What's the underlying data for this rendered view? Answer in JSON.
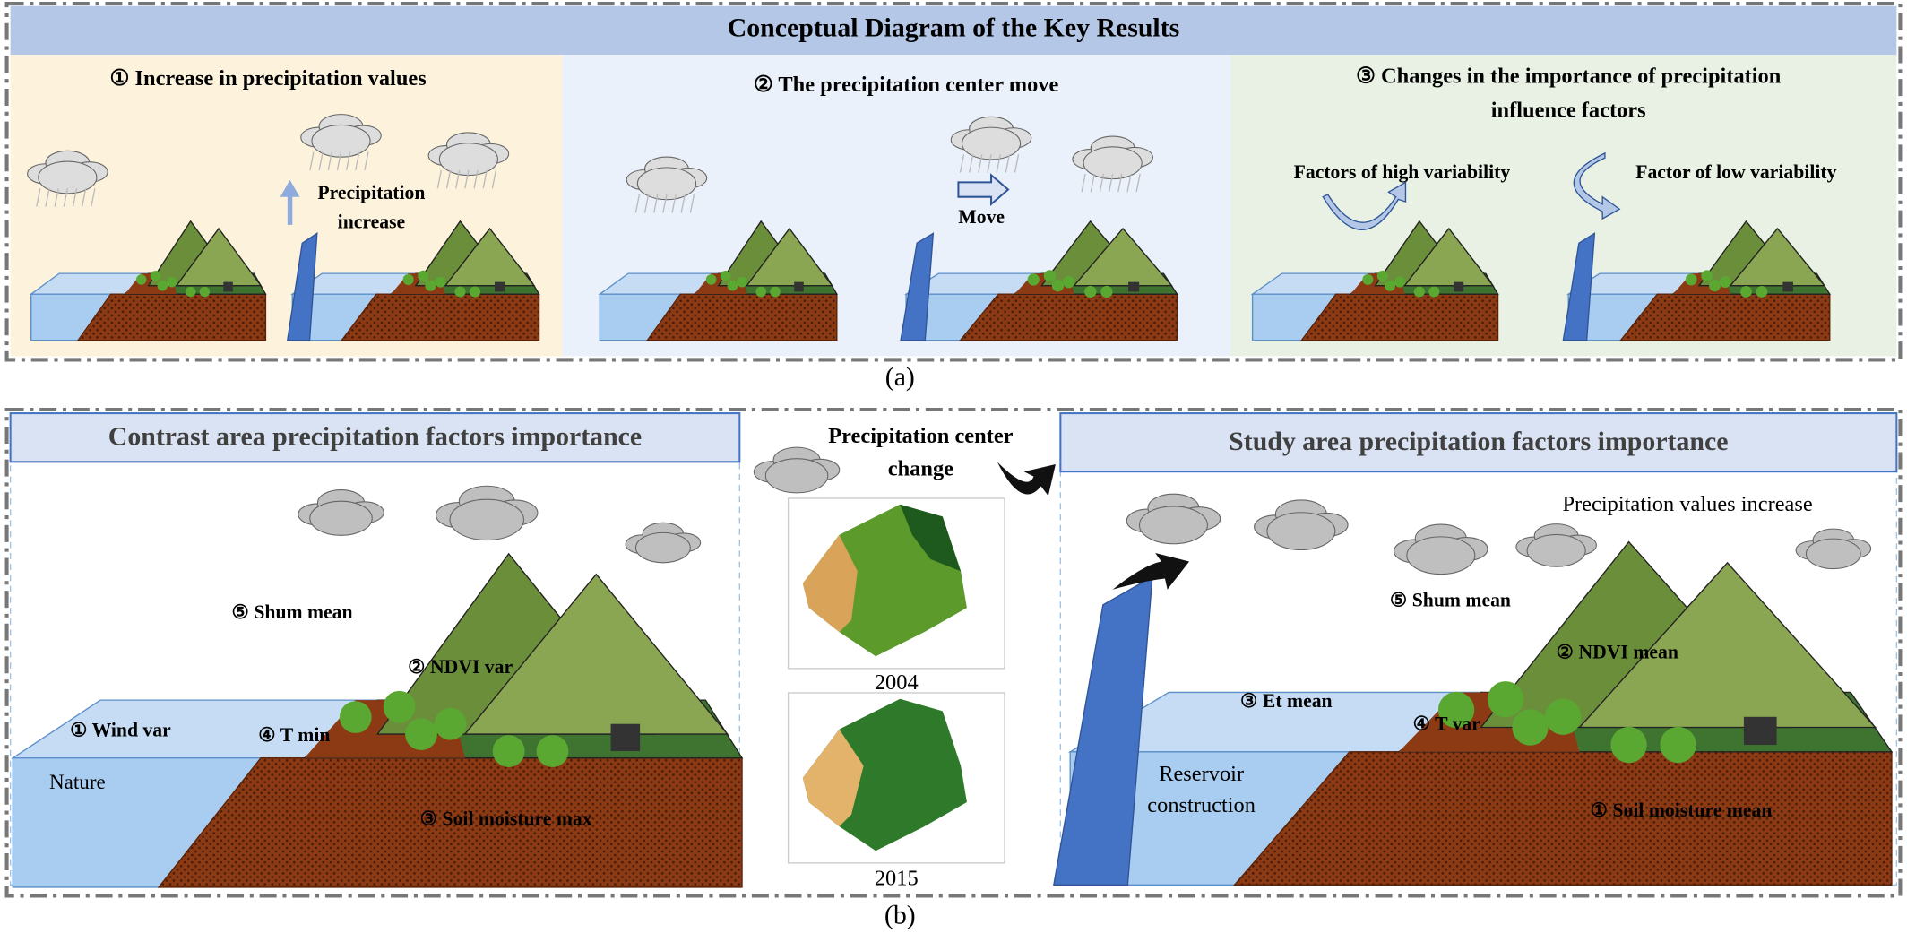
{
  "title": "Conceptual Diagram of the Key Results",
  "panel_a": {
    "sections": [
      {
        "title_lines": [
          "① Increase in precipitation values"
        ],
        "labels": [
          "Precipitation",
          "increase"
        ]
      },
      {
        "title_lines": [
          "② The precipitation center move"
        ],
        "labels": [
          "Move"
        ]
      },
      {
        "title_lines": [
          "③ Changes in the importance of precipitation",
          "influence factors"
        ],
        "labels": [
          "Factors of high variability",
          "Factor of low variability"
        ]
      }
    ],
    "caption": "(a)"
  },
  "panel_b": {
    "contrast": {
      "title": "Contrast area precipitation factors importance",
      "labels": [
        "⑤ Shum mean",
        "② NDVI var",
        "① Wind var",
        "④ T min",
        "Nature",
        "③ Soil moisture max"
      ]
    },
    "center": {
      "title_lines": [
        "Precipitation center",
        "change"
      ],
      "years": [
        "2004",
        "2015"
      ]
    },
    "study": {
      "title": "Study area precipitation factors importance",
      "note": "Precipitation values increase",
      "labels": [
        "⑤ Shum mean",
        "② NDVI mean",
        "③ Et mean",
        "④ T var",
        "Reservoir",
        "construction",
        "① Soil moisture mean"
      ]
    },
    "caption": "(b)"
  }
}
